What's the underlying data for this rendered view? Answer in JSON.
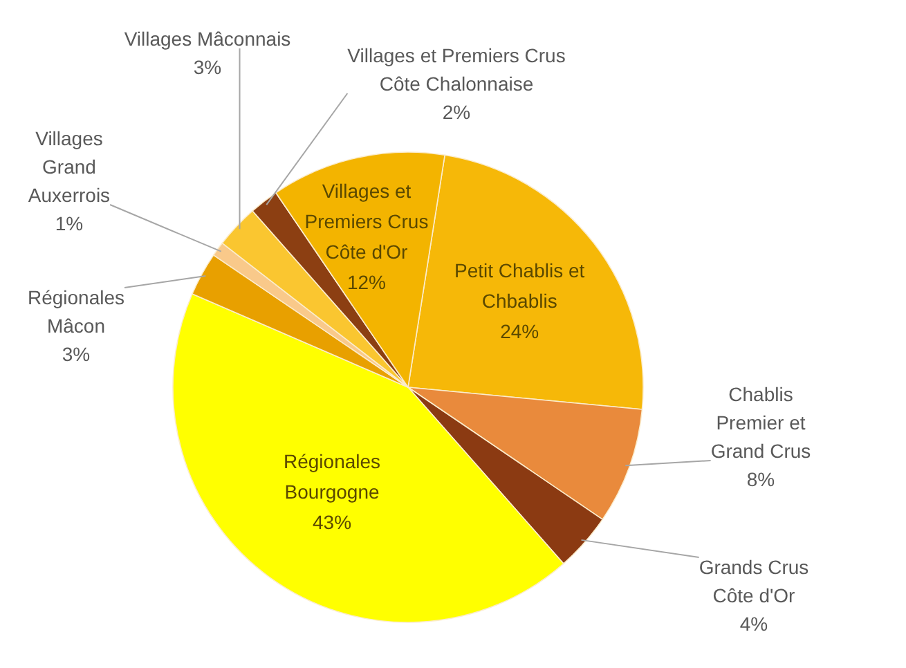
{
  "chart_data": {
    "type": "pie",
    "categories": [
      "Petit Chablis et Chbablis",
      "Chablis Premier et Grand Crus",
      "Grands Crus Côte d'Or",
      "Régionales Bourgogne",
      "Régionales Mâcon",
      "Villages Grand Auxerrois",
      "Villages Mâconnais",
      "Villages et Premiers Crus Côte Chalonnaise",
      "Villages et Premiers Crus Côte d'Or"
    ],
    "values": [
      24,
      8,
      4,
      43,
      3,
      1,
      3,
      2,
      12
    ],
    "colors": [
      "#f6b808",
      "#e98a3c",
      "#8b3a12",
      "#ffff00",
      "#e8a000",
      "#f9c98a",
      "#fac630",
      "#8c3f12",
      "#f3b400"
    ],
    "value_labels": [
      "24%",
      "8%",
      "4%",
      "43%",
      "3%",
      "1%",
      "3%",
      "2%",
      "12%"
    ]
  }
}
